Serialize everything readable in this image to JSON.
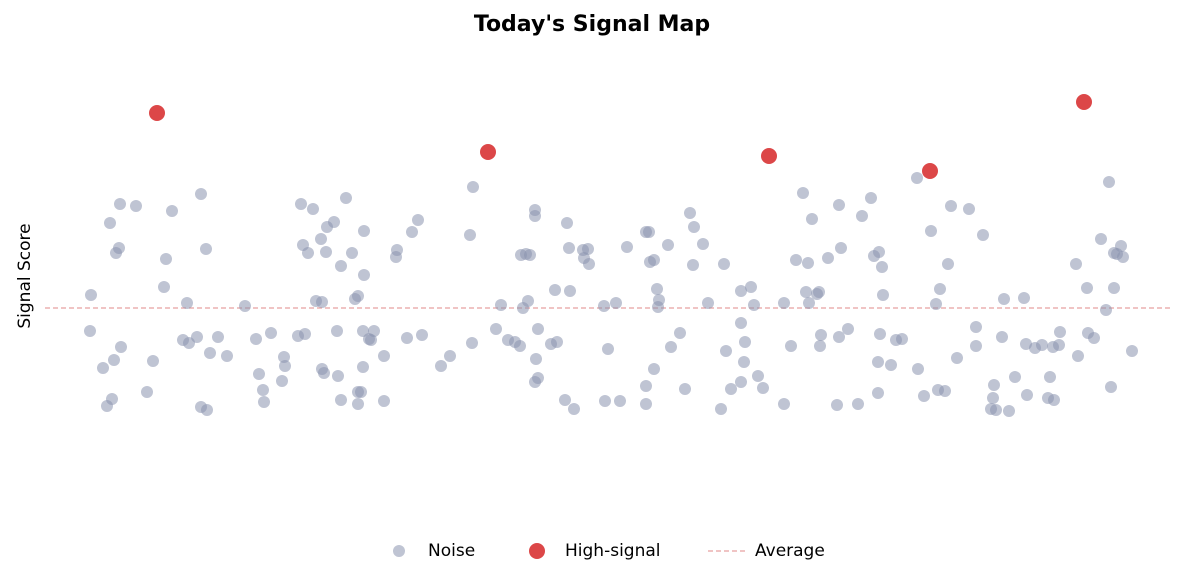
{
  "chart_data": {
    "type": "scatter",
    "title": "Today's Signal Map",
    "ylabel": "Signal Score",
    "xlim": [
      0,
      110
    ],
    "ylim": [
      0,
      46
    ],
    "series": [
      {
        "name": "Noise",
        "color": "#8a94ae",
        "x": [
          3.1,
          3.0,
          4.3,
          4.7,
          5.2,
          5.4,
          5.0,
          5.6,
          5.9,
          6.0,
          6.1,
          7.6,
          8.7,
          9.3,
          10.4,
          10.6,
          11.2,
          12.3,
          12.7,
          12.9,
          13.7,
          14.1,
          14.1,
          14.6,
          14.7,
          15.0,
          15.8,
          16.7,
          18.5,
          19.6,
          19.9,
          20.3,
          20.4,
          21.1,
          22.2,
          22.4,
          22.5,
          23.8,
          24.1,
          24.3,
          24.5,
          24.8,
          25.3,
          25.6,
          26.1,
          26.2,
          26.2,
          26.4,
          26.6,
          26.7,
          27.4,
          27.7,
          27.8,
          28.1,
          28.1,
          28.6,
          29.2,
          29.5,
          29.8,
          29.8,
          29.8,
          30.1,
          30.3,
          30.3,
          30.4,
          30.4,
          30.9,
          31.1,
          31.4,
          32.4,
          32.4,
          33.6,
          33.7,
          34.7,
          35.2,
          35.8,
          36.2,
          38.1,
          39.0,
          41.0,
          41.2,
          41.3,
          43.6,
          44.1,
          44.8,
          45.5,
          46.0,
          46.1,
          46.3,
          46.6,
          46.8,
          47.0,
          47.5,
          47.5,
          47.5,
          47.6,
          47.8,
          47.8,
          49.1,
          49.5,
          49.7,
          50.5,
          50.7,
          50.9,
          51.0,
          51.4,
          52.3,
          52.4,
          52.8,
          52.9,
          54.5,
          54.4,
          54.8,
          55.6,
          56.0,
          56.7,
          58.6,
          58.6,
          58.6,
          58.9,
          59.0,
          59.4,
          59.4,
          59.7,
          59.8,
          59.9,
          60.8,
          61.1,
          62.0,
          62.5,
          63.0,
          63.3,
          63.4,
          64.3,
          64.8,
          66.1,
          66.4,
          66.6,
          67.1,
          68.1,
          68.1,
          68.1,
          68.4,
          68.5,
          69.1,
          69.4,
          69.8,
          70.3,
          72.4,
          72.4,
          73.1,
          73.6,
          74.3,
          74.6,
          74.8,
          74.9,
          75.2,
          75.7,
          75.9,
          76.0,
          76.1,
          76.8,
          77.7,
          77.9,
          77.9,
          78.1,
          78.8,
          79.8,
          80.2,
          81.1,
          81.4,
          81.9,
          82.0,
          81.8,
          81.8,
          82.2,
          82.3,
          83.6,
          84.2,
          83.1,
          85.7,
          85.8,
          86.4,
          87.1,
          87.6,
          87.8,
          88.5,
          88.0,
          88.8,
          89.1,
          89.7,
          90.9,
          91.6,
          91.6,
          92.3,
          93.4,
          93.3,
          93.6,
          93.1,
          94.2,
          94.4,
          94.9,
          95.5,
          96.4,
          96.7,
          96.6,
          97.5,
          98.2,
          99.0,
          98.8,
          99.3,
          99.4,
          99.9,
          100.0,
          101.6,
          101.8,
          102.7,
          102.8,
          103.4,
          104.1,
          104.6,
          104.9,
          105.1,
          105.4,
          105.4,
          105.7,
          106.1,
          106.3,
          107.2
        ],
        "y": [
          22.5,
          18.9,
          15.2,
          11.4,
          12.1,
          16.0,
          29.7,
          26.7,
          27.2,
          31.6,
          17.3,
          31.4,
          12.8,
          15.9,
          23.3,
          26.1,
          30.9,
          18.0,
          21.7,
          17.7,
          18.3,
          32.6,
          11.3,
          27.1,
          11.0,
          16.7,
          18.3,
          16.4,
          21.4,
          18.1,
          14.6,
          13.0,
          11.8,
          18.7,
          13.9,
          16.3,
          15.4,
          18.4,
          31.6,
          27.5,
          18.6,
          26.7,
          31.1,
          21.9,
          28.1,
          21.8,
          15.1,
          14.7,
          26.8,
          29.3,
          29.8,
          18.9,
          14.4,
          25.4,
          12.0,
          32.2,
          26.7,
          22.1,
          12.8,
          11.6,
          22.4,
          12.8,
          18.9,
          15.3,
          28.9,
          24.5,
          18.1,
          18.0,
          18.9,
          16.4,
          11.9,
          26.3,
          27.0,
          18.2,
          28.8,
          30.0,
          18.5,
          15.4,
          16.4,
          28.5,
          17.7,
          33.3,
          19.1,
          21.5,
          18.0,
          17.8,
          17.4,
          26.5,
          21.2,
          26.6,
          21.9,
          26.5,
          31.0,
          30.4,
          13.8,
          16.1,
          14.2,
          19.1,
          17.6,
          23.0,
          17.8,
          12.0,
          29.7,
          27.2,
          22.9,
          11.1,
          27.0,
          26.2,
          27.1,
          25.6,
          11.9,
          21.4,
          17.1,
          21.7,
          11.9,
          27.3,
          28.8,
          13.4,
          11.6,
          28.8,
          25.8,
          26.0,
          15.1,
          23.1,
          21.3,
          22.0,
          27.5,
          17.3,
          18.7,
          13.1,
          30.7,
          25.5,
          29.3,
          27.6,
          21.7,
          11.1,
          25.6,
          16.9,
          13.1,
          19.7,
          22.9,
          13.8,
          15.8,
          17.8,
          23.3,
          21.5,
          14.4,
          13.2,
          11.6,
          21.7,
          17.4,
          26.0,
          32.7,
          22.8,
          25.7,
          21.7,
          30.1,
          22.6,
          22.8,
          17.4,
          18.5,
          26.2,
          11.5,
          18.3,
          31.5,
          27.2,
          19.1,
          11.6,
          30.4,
          32.2,
          26.4,
          26.8,
          18.6,
          15.8,
          12.7,
          25.3,
          22.5,
          18.0,
          18.1,
          15.5,
          34.2,
          15.1,
          12.4,
          28.9,
          21.6,
          13.0,
          12.9,
          23.1,
          25.6,
          31.4,
          16.2,
          31.1,
          19.3,
          17.4,
          28.5,
          13.5,
          12.2,
          11.0,
          11.1,
          18.3,
          22.1,
          10.9,
          14.3,
          22.2,
          12.5,
          17.6,
          17.2,
          17.5,
          14.3,
          12.2,
          17.3,
          12.0,
          17.5,
          18.8,
          25.6,
          16.4,
          23.2,
          18.7,
          18.2,
          28.1,
          21.0,
          33.8,
          13.3,
          23.2,
          26.7,
          26.6,
          27.4,
          26.3,
          16.9
        ]
      },
      {
        "name": "High-signal",
        "color": "#d62728",
        "x": [
          9.7,
          42.8,
          70.9,
          87.0,
          102.4
        ],
        "y": [
          40.7,
          36.8,
          36.4,
          34.9,
          41.8
        ]
      }
    ],
    "reference_line": {
      "name": "Average",
      "value": 21.2,
      "color": "#e8a0a0"
    },
    "legend": "bottom"
  }
}
